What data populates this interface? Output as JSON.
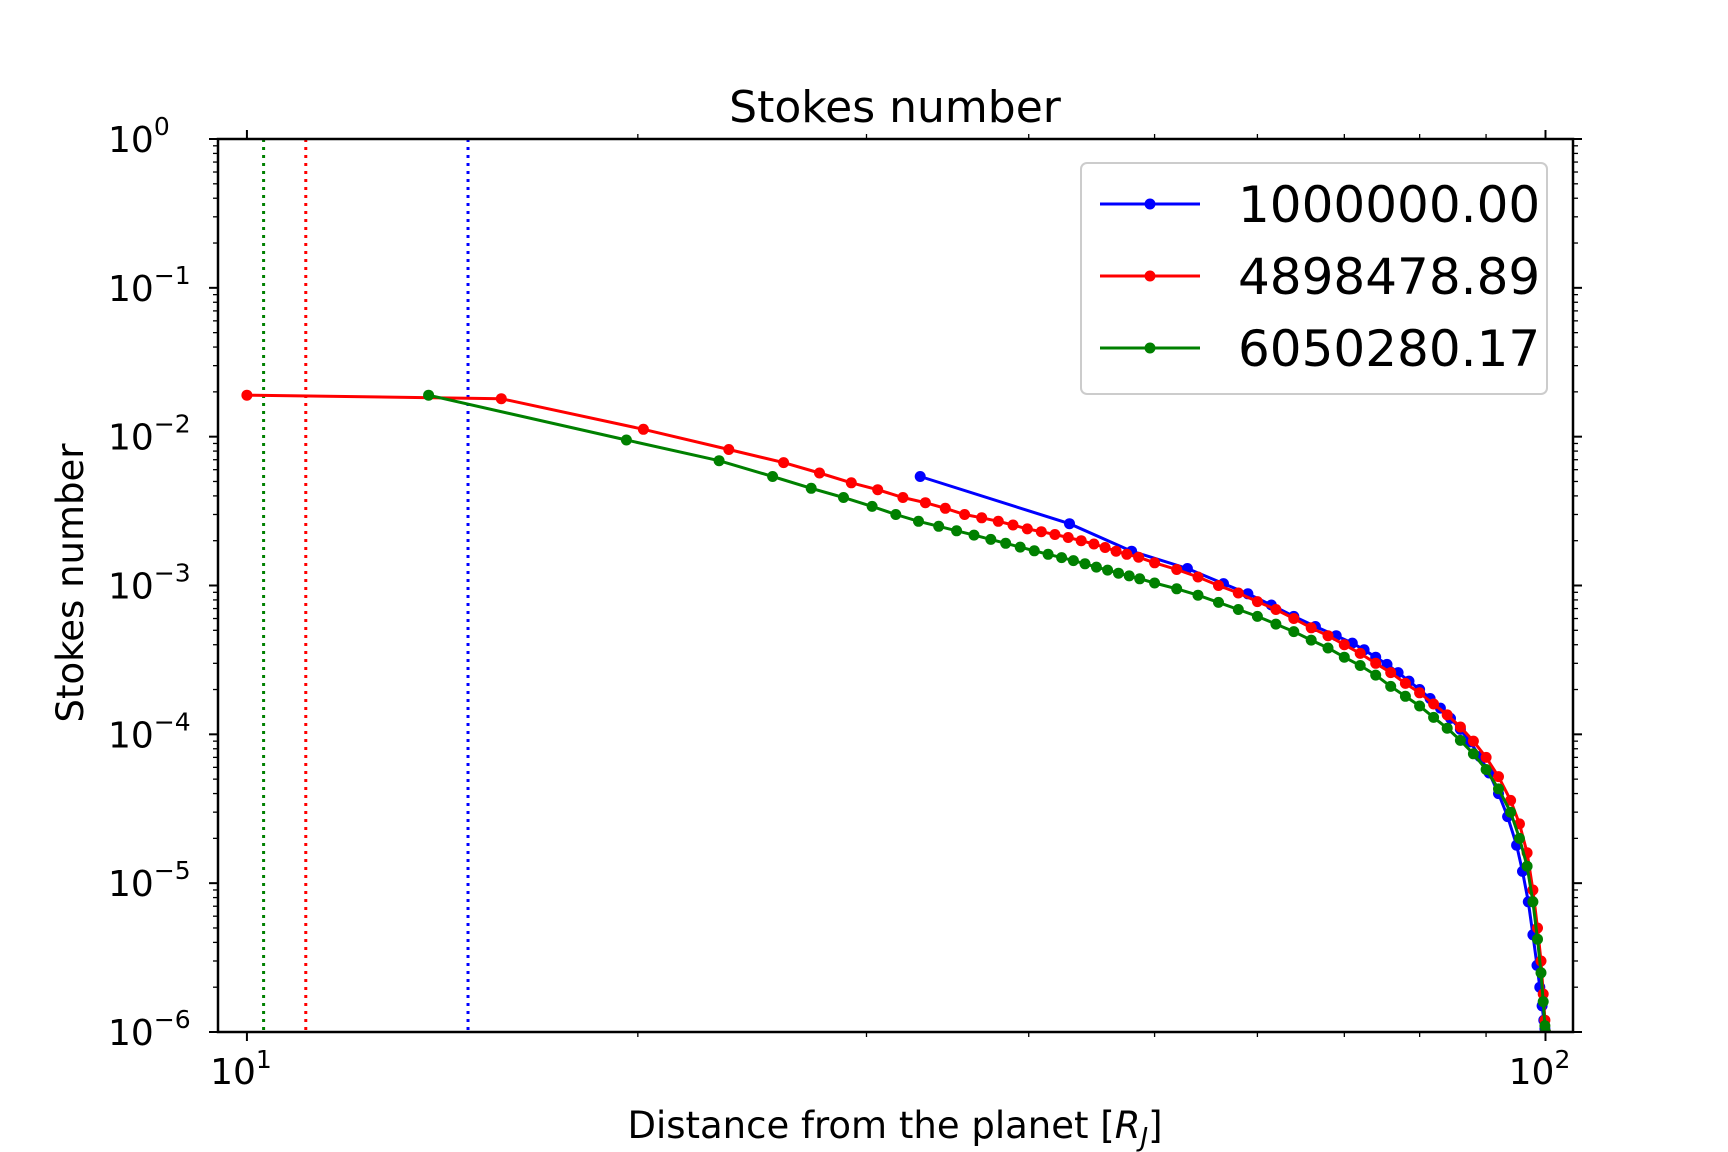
{
  "chart_data": {
    "type": "line",
    "title": "Stokes number",
    "xlabel": "Distance from the planet [",
    "xlabel_symbol": "R",
    "xlabel_subscript": "J",
    "xlabel_end": "]",
    "ylabel": "Stokes number",
    "xscale": "log",
    "yscale": "log",
    "xlim": [
      9.5,
      105
    ],
    "ylim": [
      1e-06,
      1
    ],
    "x_ticks": [
      {
        "base": "10",
        "exp": "1",
        "value": 10
      },
      {
        "base": "10",
        "exp": "2",
        "value": 100
      }
    ],
    "y_ticks": [
      {
        "base": "10",
        "exp": "0",
        "value": 1
      },
      {
        "base": "10",
        "exp": "−1",
        "value": 0.1
      },
      {
        "base": "10",
        "exp": "−2",
        "value": 0.01
      },
      {
        "base": "10",
        "exp": "−3",
        "value": 0.001
      },
      {
        "base": "10",
        "exp": "−4",
        "value": 0.0001
      },
      {
        "base": "10",
        "exp": "−5",
        "value": 1e-05
      },
      {
        "base": "10",
        "exp": "−6",
        "value": 1e-06
      }
    ],
    "grid": false,
    "legend_position": "top-right",
    "vertical_lines": [
      {
        "x": 10.3,
        "color": "#008000",
        "style": "dotted"
      },
      {
        "x": 11.1,
        "color": "#ff0000",
        "style": "dotted"
      },
      {
        "x": 14.8,
        "color": "#0000ff",
        "style": "dotted"
      }
    ],
    "series": [
      {
        "name": "1000000.00",
        "color": "#0000ff",
        "x": [
          33.0,
          43.0,
          48.0,
          53.0,
          56.5,
          59.0,
          61.5,
          64.0,
          66.5,
          69.0,
          71.0,
          72.5,
          74.0,
          75.5,
          77.0,
          78.5,
          80.0,
          81.5,
          83.0,
          84.5,
          86.0,
          87.5,
          89.0,
          90.5,
          92.0,
          93.5,
          95.0,
          96.0,
          97.0,
          97.8,
          98.5,
          99.0,
          99.4,
          99.7,
          99.9,
          100.0
        ],
        "y": [
          0.0054,
          0.0026,
          0.0017,
          0.0013,
          0.00103,
          0.00088,
          0.00074,
          0.00062,
          0.00053,
          0.00046,
          0.00041,
          0.00037,
          0.00033,
          0.000295,
          0.00026,
          0.000228,
          0.0002,
          0.000174,
          0.00015,
          0.000128,
          0.000108,
          8.9e-05,
          7.1e-05,
          5.5e-05,
          4e-05,
          2.8e-05,
          1.8e-05,
          1.2e-05,
          7.5e-06,
          4.5e-06,
          2.8e-06,
          2e-06,
          1.5e-06,
          1.2e-06,
          1.05e-06,
          1e-06
        ]
      },
      {
        "name": "4898478.89",
        "color": "#ff0000",
        "x": [
          10.0,
          15.7,
          20.2,
          23.5,
          25.9,
          27.6,
          29.2,
          30.6,
          32.0,
          33.3,
          34.5,
          35.7,
          36.8,
          37.9,
          38.9,
          39.9,
          40.9,
          41.9,
          42.9,
          43.9,
          44.9,
          45.8,
          46.7,
          47.6,
          48.6,
          50.0,
          52.0,
          54.0,
          56.0,
          58.0,
          60.0,
          62.0,
          64.0,
          66.0,
          68.0,
          70.0,
          72.0,
          74.0,
          76.0,
          78.0,
          80.0,
          82.0,
          84.0,
          86.0,
          88.0,
          90.0,
          92.0,
          94.0,
          95.5,
          96.8,
          97.8,
          98.6,
          99.2,
          99.6,
          99.9,
          100.0
        ],
        "y": [
          0.019,
          0.018,
          0.0112,
          0.0082,
          0.0067,
          0.0057,
          0.0049,
          0.0044,
          0.0039,
          0.0036,
          0.0033,
          0.003,
          0.00285,
          0.0027,
          0.00255,
          0.0024,
          0.0023,
          0.0022,
          0.0021,
          0.002,
          0.0019,
          0.0018,
          0.0017,
          0.00162,
          0.00155,
          0.00142,
          0.00128,
          0.00114,
          0.001,
          0.00089,
          0.00078,
          0.00069,
          0.0006,
          0.00052,
          0.00046,
          0.0004,
          0.00035,
          0.0003,
          0.00026,
          0.00022,
          0.00019,
          0.00016,
          0.000135,
          0.000112,
          9e-05,
          7e-05,
          5.2e-05,
          3.6e-05,
          2.5e-05,
          1.6e-05,
          9e-06,
          5e-06,
          3e-06,
          1.8e-06,
          1.2e-06,
          1e-06
        ]
      },
      {
        "name": "6050280.17",
        "color": "#008000",
        "x": [
          13.8,
          19.6,
          23.1,
          25.4,
          27.2,
          28.8,
          30.3,
          31.6,
          32.9,
          34.1,
          35.2,
          36.3,
          37.4,
          38.4,
          39.4,
          40.4,
          41.4,
          42.4,
          43.3,
          44.2,
          45.1,
          46.0,
          46.9,
          47.8,
          48.7,
          50.0,
          52.0,
          54.0,
          56.0,
          58.0,
          60.0,
          62.0,
          64.0,
          66.0,
          68.0,
          70.0,
          72.0,
          74.0,
          76.0,
          78.0,
          80.0,
          82.0,
          84.0,
          86.0,
          88.0,
          90.0,
          92.0,
          94.0,
          95.5,
          96.8,
          97.8,
          98.6,
          99.2,
          99.6,
          99.9,
          100.0
        ],
        "y": [
          0.019,
          0.0095,
          0.0069,
          0.0054,
          0.0045,
          0.0039,
          0.0034,
          0.003,
          0.0027,
          0.0025,
          0.00233,
          0.00218,
          0.00204,
          0.00192,
          0.00181,
          0.00171,
          0.00162,
          0.00154,
          0.00147,
          0.0014,
          0.00133,
          0.00127,
          0.00121,
          0.00116,
          0.00111,
          0.00104,
          0.00095,
          0.00086,
          0.00077,
          0.00069,
          0.00062,
          0.00055,
          0.00049,
          0.00043,
          0.00038,
          0.00033,
          0.00029,
          0.00025,
          0.00021,
          0.00018,
          0.000155,
          0.00013,
          0.00011,
          9.1e-05,
          7.4e-05,
          5.8e-05,
          4.3e-05,
          3e-05,
          2e-05,
          1.3e-05,
          7.5e-06,
          4.2e-06,
          2.5e-06,
          1.6e-06,
          1.1e-06,
          1e-06
        ]
      }
    ]
  }
}
